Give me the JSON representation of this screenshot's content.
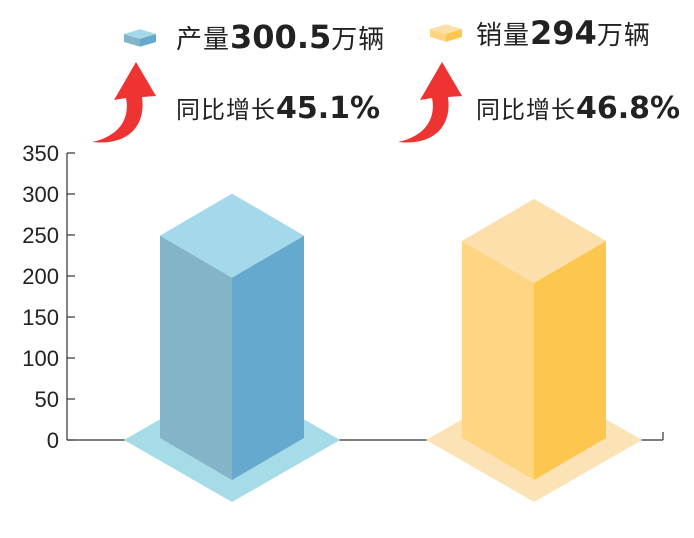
{
  "chart_data": {
    "type": "bar",
    "categories": [
      "产量",
      "销量"
    ],
    "values": [
      300.5,
      294
    ],
    "ylim": [
      0,
      350
    ],
    "yticks": [
      0,
      50,
      100,
      150,
      200,
      250,
      300,
      350
    ],
    "grid": false,
    "legend_placement": "top",
    "colors": {
      "production_top": "#a3d9ea",
      "production_left": "#84b4c8",
      "production_right": "#66a9cf",
      "production_shadow": "#a6dbe8",
      "sales_top": "#fddfac",
      "sales_left": "#fdd583",
      "sales_right": "#fdc74f",
      "sales_shadow": "#fce3b6",
      "arrow": "#ee3333",
      "axis": "#333333"
    },
    "legend": [
      {
        "prefix": "产量",
        "value": "300.5",
        "unit": "万辆",
        "growth_label": "同比增长",
        "growth_value": "45.1%"
      },
      {
        "prefix": "销量",
        "value": "294",
        "unit": "万辆",
        "growth_label": "同比增长",
        "growth_value": "46.8%"
      }
    ]
  }
}
